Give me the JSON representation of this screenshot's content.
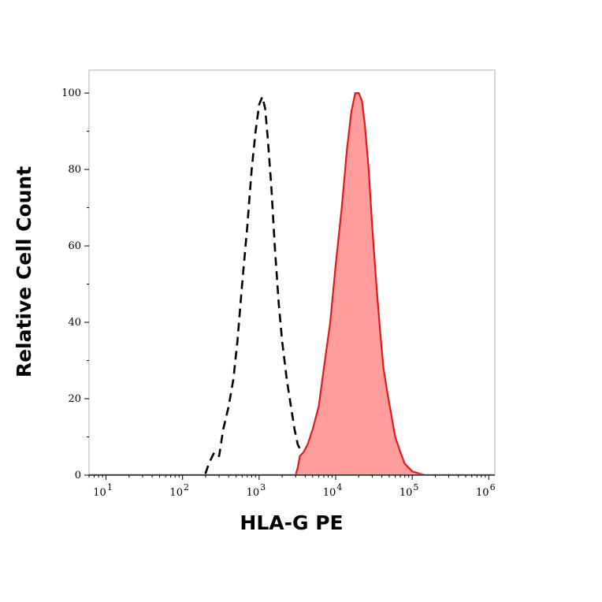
{
  "chart_data": {
    "type": "area",
    "title": "",
    "xlabel": "HLA-G PE",
    "ylabel": "Relative Cell Count",
    "x_scale": "log",
    "xlim": [
      6,
      1200000
    ],
    "ylim": [
      0,
      106
    ],
    "y_ticks": [
      0,
      20,
      40,
      60,
      80,
      100
    ],
    "x_ticks": [
      {
        "base": "10",
        "exp": "1"
      },
      {
        "base": "10",
        "exp": "2"
      },
      {
        "base": "10",
        "exp": "3"
      },
      {
        "base": "10",
        "exp": "4"
      },
      {
        "base": "10",
        "exp": "5"
      },
      {
        "base": "10",
        "exp": "6"
      }
    ],
    "grid": false,
    "series": [
      {
        "style": "dashed",
        "color": "#000000",
        "x": [
          10,
          100,
          180,
          200,
          220,
          260,
          300,
          340,
          400,
          460,
          520,
          600,
          700,
          800,
          900,
          1000,
          1100,
          1200,
          1300,
          1450,
          1600,
          1800,
          2000,
          2300,
          2600,
          2900,
          3200,
          3600,
          4000,
          4500,
          5000,
          5500,
          6500,
          10000,
          1000000
        ],
        "y": [
          0,
          0,
          0,
          0.5,
          3,
          6,
          5,
          12,
          18,
          25,
          35,
          50,
          65,
          80,
          90,
          97,
          99,
          96,
          88,
          75,
          60,
          45,
          35,
          25,
          18,
          12,
          8,
          6,
          4,
          2,
          1,
          0.5,
          0,
          0,
          0
        ]
      },
      {
        "style": "filled",
        "color": "#e31a1c",
        "fill": "#ff9c9c",
        "x": [
          10,
          3000,
          3200,
          3400,
          3800,
          4300,
          5000,
          6000,
          7000,
          8500,
          10000,
          12000,
          14000,
          16000,
          18000,
          20000,
          22000,
          24000,
          27000,
          30000,
          34000,
          38000,
          42000,
          47000,
          53000,
          60000,
          70000,
          80000,
          100000,
          120000,
          150000,
          200000,
          1000000
        ],
        "y": [
          0,
          0,
          2,
          5,
          6,
          8,
          12,
          18,
          28,
          40,
          55,
          70,
          85,
          95,
          100,
          100,
          98,
          92,
          80,
          65,
          50,
          38,
          28,
          22,
          16,
          10,
          6,
          3,
          1,
          0.5,
          0,
          0,
          0
        ]
      }
    ]
  }
}
